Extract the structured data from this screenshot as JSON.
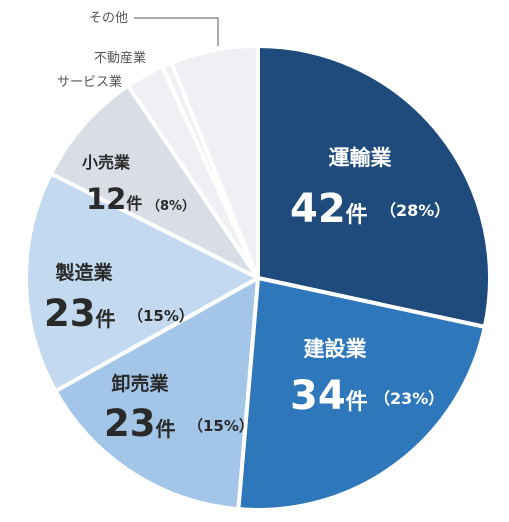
{
  "chart_data": {
    "type": "pie",
    "slices": [
      {
        "name": "運輸業",
        "count": 42,
        "count_label": "42",
        "unit": "件",
        "percent": 28,
        "percent_label": "（28%）",
        "color": "#1e4b7c",
        "text_color": "#ffffff"
      },
      {
        "name": "建設業",
        "count": 34,
        "count_label": "34",
        "unit": "件",
        "percent": 23,
        "percent_label": "（23%）",
        "color": "#2f77bb",
        "text_color": "#ffffff"
      },
      {
        "name": "卸売業",
        "count": 23,
        "count_label": "23",
        "unit": "件",
        "percent": 15,
        "percent_label": "（15%）",
        "color": "#a3c5e7",
        "text_color": "#2a2a2a"
      },
      {
        "name": "製造業",
        "count": 23,
        "count_label": "23",
        "unit": "件",
        "percent": 15,
        "percent_label": "（15%）",
        "color": "#c3d9ef",
        "text_color": "#2a2a2a"
      },
      {
        "name": "小売業",
        "count": 12,
        "count_label": "12",
        "unit": "件",
        "percent": 8,
        "percent_label": "（8%）",
        "color": "#d8dde6",
        "text_color": "#2a2a2a"
      },
      {
        "name": "サービス業",
        "count": 4,
        "color": "#eef0f3",
        "text_color": "#555555"
      },
      {
        "name": "不動産業",
        "count": 1,
        "color": "#eef0f3",
        "text_color": "#555555"
      },
      {
        "name": "その他",
        "count": 9,
        "color": "#eef0f3",
        "text_color": "#555555"
      }
    ]
  }
}
